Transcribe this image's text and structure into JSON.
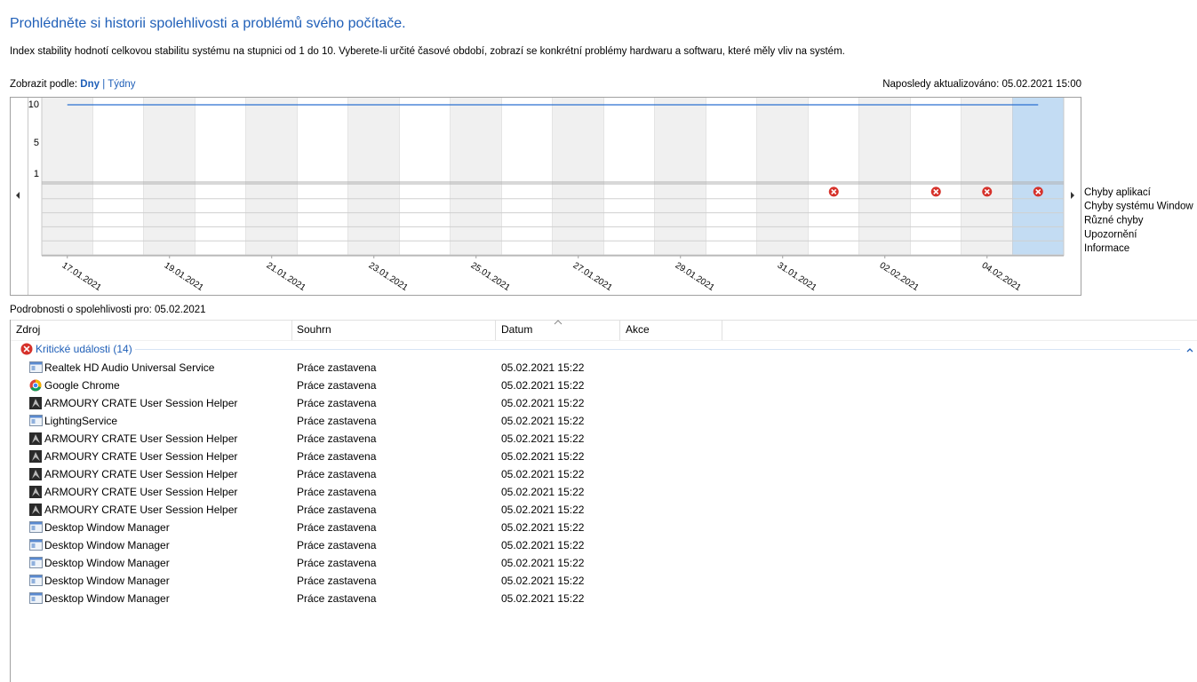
{
  "header": {
    "title": "Prohlédněte si historii spolehlivosti a problémů svého počítače.",
    "description": "Index stability hodnotí celkovou stabilitu systému na stupnici od 1 do 10. Vyberete-li určité časové období, zobrazí se konkrétní problémy hardwaru a softwaru, které měly vliv na systém."
  },
  "view": {
    "label": "Zobrazit podle:",
    "options": [
      "Dny",
      "Týdny"
    ],
    "separator": "|"
  },
  "last_updated": "Naposledy aktualizováno: 05.02.2021 15:00",
  "chart_data": {
    "type": "reliability",
    "x": [
      "17.01.2021",
      null,
      "19.01.2021",
      null,
      "21.01.2021",
      null,
      "23.01.2021",
      null,
      "25.01.2021",
      null,
      "27.01.2021",
      null,
      "29.01.2021",
      null,
      "31.01.2021",
      null,
      "02.02.2021",
      null,
      "04.02.2021",
      null
    ],
    "ylim": [
      1,
      10
    ],
    "yticks": [
      1,
      5,
      10
    ],
    "stability_index": [
      10,
      10,
      10,
      10,
      10,
      10,
      10,
      10,
      10,
      10,
      10,
      10,
      10,
      10,
      10,
      10,
      10,
      10,
      10,
      10
    ],
    "rows": [
      {
        "name": "Chyby aplikací",
        "values": [
          false,
          false,
          false,
          false,
          false,
          false,
          false,
          false,
          false,
          false,
          false,
          false,
          false,
          false,
          false,
          true,
          false,
          true,
          true,
          true
        ]
      },
      {
        "name": "Chyby systému Window",
        "values": [
          false,
          false,
          false,
          false,
          false,
          false,
          false,
          false,
          false,
          false,
          false,
          false,
          false,
          false,
          false,
          false,
          false,
          false,
          false,
          false
        ]
      },
      {
        "name": "Různé chyby",
        "values": [
          false,
          false,
          false,
          false,
          false,
          false,
          false,
          false,
          false,
          false,
          false,
          false,
          false,
          false,
          false,
          false,
          false,
          false,
          false,
          false
        ]
      },
      {
        "name": "Upozornění",
        "values": [
          false,
          false,
          false,
          false,
          false,
          false,
          false,
          false,
          false,
          false,
          false,
          false,
          false,
          false,
          false,
          false,
          false,
          false,
          false,
          false
        ]
      },
      {
        "name": "Informace",
        "values": [
          false,
          false,
          false,
          false,
          false,
          false,
          false,
          false,
          false,
          false,
          false,
          false,
          false,
          false,
          false,
          false,
          false,
          false,
          false,
          false
        ]
      }
    ]
  },
  "details": {
    "title": "Podrobnosti o spolehlivosti pro: 05.02.2021",
    "columns": [
      "Zdroj",
      "Souhrn",
      "Datum",
      "Akce"
    ],
    "group": "Kritické události (14)",
    "rows": [
      [
        "Realtek HD Audio Universal Service",
        "Práce zastavena",
        "05.02.2021 15:22"
      ],
      [
        "Google Chrome",
        "Práce zastavena",
        "05.02.2021 15:22"
      ],
      [
        "ARMOURY CRATE User Session Helper",
        "Práce zastavena",
        "05.02.2021 15:22"
      ],
      [
        "LightingService",
        "Práce zastavena",
        "05.02.2021 15:22"
      ],
      [
        "ARMOURY CRATE User Session Helper",
        "Práce zastavena",
        "05.02.2021 15:22"
      ],
      [
        "ARMOURY CRATE User Session Helper",
        "Práce zastavena",
        "05.02.2021 15:22"
      ],
      [
        "ARMOURY CRATE User Session Helper",
        "Práce zastavena",
        "05.02.2021 15:22"
      ],
      [
        "ARMOURY CRATE User Session Helper",
        "Práce zastavena",
        "05.02.2021 15:22"
      ],
      [
        "ARMOURY CRATE User Session Helper",
        "Práce zastavena",
        "05.02.2021 15:22"
      ],
      [
        "Desktop Window Manager",
        "Práce zastavena",
        "05.02.2021 15:22"
      ],
      [
        "Desktop Window Manager",
        "Práce zastavena",
        "05.02.2021 15:22"
      ],
      [
        "Desktop Window Manager",
        "Práce zastavena",
        "05.02.2021 15:22"
      ],
      [
        "Desktop Window Manager",
        "Práce zastavena",
        "05.02.2021 15:22"
      ],
      [
        "Desktop Window Manager",
        "Práce zastavena",
        "05.02.2021 15:22"
      ]
    ]
  }
}
